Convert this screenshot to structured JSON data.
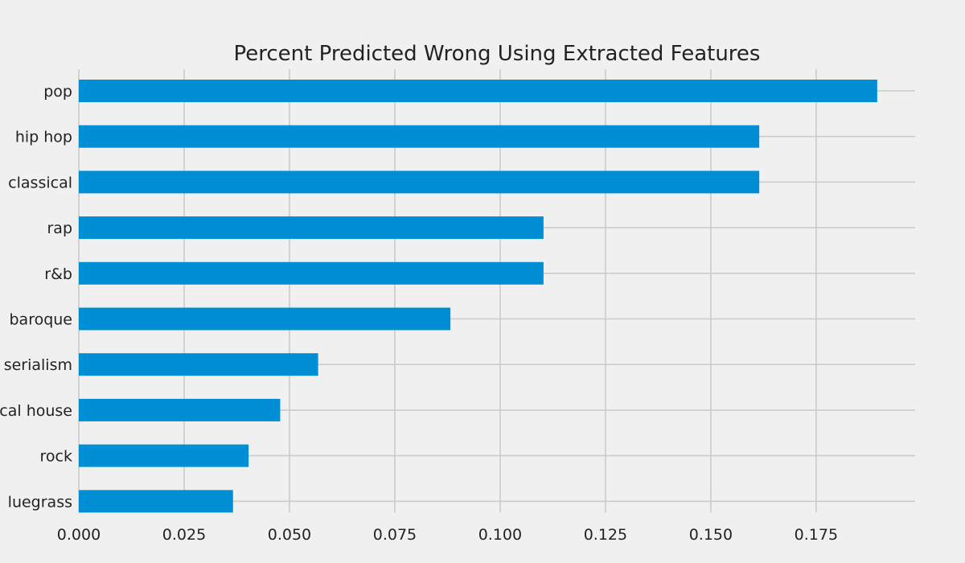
{
  "chart_data": {
    "type": "bar",
    "orientation": "horizontal",
    "title": "Percent Predicted Wrong Using Extracted Features",
    "xlabel": "",
    "ylabel": "",
    "categories": [
      "pop",
      "hip hop",
      "classical",
      "rap",
      "r&b",
      "baroque",
      "serialism",
      "cal house",
      "rock",
      "luegrass"
    ],
    "values": [
      0.1895,
      0.1615,
      0.1615,
      0.1103,
      0.1103,
      0.0882,
      0.0568,
      0.0478,
      0.0403,
      0.0366
    ],
    "x_ticks": [
      "0.000",
      "0.025",
      "0.050",
      "0.075",
      "0.100",
      "0.125",
      "0.150",
      "0.175"
    ],
    "x_tick_values": [
      0,
      0.025,
      0.05,
      0.075,
      0.1,
      0.125,
      0.15,
      0.175
    ],
    "xlim": [
      0,
      0.1985
    ],
    "grid": true,
    "bar_color": "#008fd5",
    "grid_color": "#cbcbcb",
    "background": "#f0f0f0",
    "text_color": "#222222"
  }
}
